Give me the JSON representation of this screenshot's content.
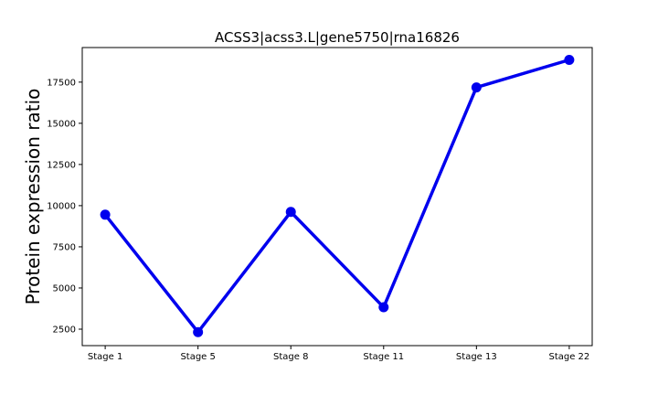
{
  "chart_data": {
    "type": "line",
    "title": "ACSS3|acss3.L|gene5750|rna16826",
    "xlabel": "",
    "ylabel": "Protein expression ratio",
    "categories": [
      "Stage 1",
      "Stage 5",
      "Stage 8",
      "Stage 11",
      "Stage 13",
      "Stage 22"
    ],
    "series": [
      {
        "values": [
          9450,
          2320,
          9620,
          3830,
          17180,
          18850
        ],
        "color": "#0000ee"
      }
    ],
    "ylim": [
      1500,
      19600
    ],
    "yticks": [
      2500,
      5000,
      7500,
      10000,
      12500,
      15000,
      17500
    ],
    "ytick_labels": [
      "2500",
      "5000",
      "7500",
      "10000",
      "12500",
      "15000",
      "17500"
    ],
    "grid": false,
    "legend": "none"
  }
}
